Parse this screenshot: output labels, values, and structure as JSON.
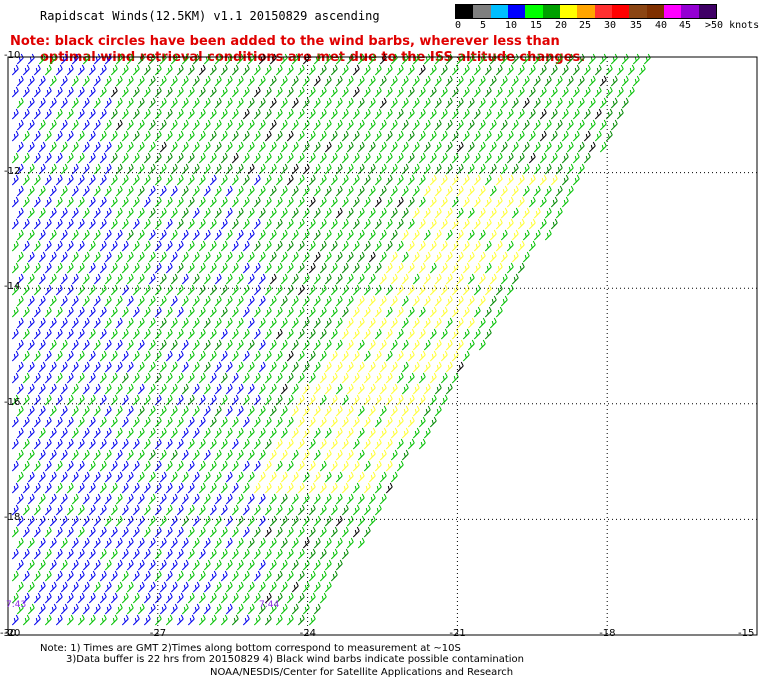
{
  "title": "Rapidscat Winds(12.5KM) v1.1 20150829 ascending",
  "note": {
    "line1": "Note: black circles have been added to the wind barbs, wherever less than",
    "line2": "optimal wind retrieval conditions are met due to the ISS altitude changes."
  },
  "legend": {
    "labels": [
      "0",
      "5",
      "10",
      "15",
      "20",
      "25",
      "30",
      "35",
      "40",
      "45",
      ">50 knots"
    ],
    "colors": [
      "#000000",
      "#7f7f7f",
      "#00bfff",
      "#0000ff",
      "#00ff00",
      "#00a000",
      "#ffff00",
      "#ffa500",
      "#ff3030",
      "#ff0000",
      "#8b4513",
      "#7f3000",
      "#ff00ff",
      "#9400d3",
      "#3f0066"
    ]
  },
  "map": {
    "lat_labels": [
      "-10",
      "-12",
      "-14",
      "-16",
      "-18",
      "-20"
    ],
    "lon_labels": [
      "-30",
      "-27",
      "-24",
      "-21",
      "-18",
      "-15"
    ],
    "lat_values": [
      -10,
      -12,
      -14,
      -16,
      -18,
      -20
    ],
    "lon_values": [
      -30,
      -27,
      -24,
      -21,
      -18,
      -15
    ],
    "time_labels": [
      "7:43",
      "7:44"
    ],
    "grid": true
  },
  "footer": {
    "line1": "Note: 1) Times are GMT 2)Times along bottom correspond to measurement at ~10S",
    "line2": "3)Data buffer is 22 hrs from 20150829 4) Black wind barbs indicate possible contamination",
    "line3": "NOAA/NESDIS/Center for Satellite Applications and Research"
  }
}
